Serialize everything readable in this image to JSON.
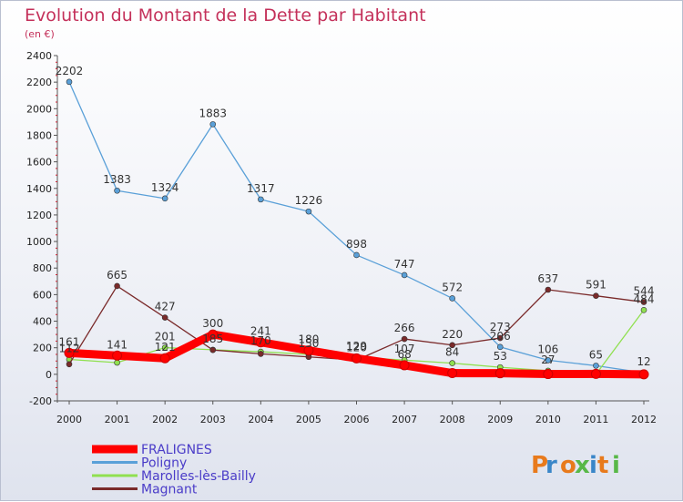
{
  "chart_data": {
    "type": "line",
    "title": "Evolution du Montant de la Dette par Habitant",
    "subtitle": "(en €)",
    "x": [
      "2000",
      "2001",
      "2002",
      "2003",
      "2004",
      "2005",
      "2006",
      "2007",
      "2008",
      "2009",
      "2010",
      "2011",
      "2012"
    ],
    "ylim": [
      -200,
      2400
    ],
    "yticks": [
      -200,
      0,
      200,
      400,
      600,
      800,
      1000,
      1200,
      1400,
      1600,
      1800,
      2000,
      2200,
      2400
    ],
    "grid": false,
    "legend_position": "bottom-left",
    "series": [
      {
        "name": "FRALIGNES",
        "color": "#ff0000",
        "values": [
          161,
          141,
          121,
          300,
          241,
          180,
          120,
          68,
          9,
          8,
          2,
          3,
          0
        ],
        "labels": [
          "161",
          "141",
          "121",
          "300",
          "241",
          "180",
          "120",
          "68",
          "",
          "",
          "",
          "",
          ""
        ]
      },
      {
        "name": "Poligny",
        "color": "#5aa0d8",
        "values": [
          2202,
          1383,
          1324,
          1883,
          1317,
          1226,
          898,
          747,
          572,
          206,
          106,
          65,
          12
        ],
        "labels": [
          "2202",
          "1383",
          "1324",
          "1883",
          "1317",
          "1226",
          "898",
          "747",
          "572",
          "206",
          "106",
          "65",
          "12"
        ]
      },
      {
        "name": "Marolles-lès-Bailly",
        "color": "#90e050",
        "values": [
          112,
          88,
          201,
          185,
          170,
          150,
          129,
          107,
          84,
          53,
          27,
          0,
          484
        ],
        "labels": [
          "112",
          "",
          "201",
          "185",
          "170",
          "150",
          "129",
          "107",
          "84",
          "53",
          "27",
          "",
          "484"
        ]
      },
      {
        "name": "Magnant",
        "color": "#7a2a2a",
        "values": [
          76,
          665,
          427,
          183,
          154,
          131,
          107,
          266,
          220,
          273,
          637,
          591,
          544
        ],
        "labels": [
          "",
          "665",
          "427",
          "",
          "",
          "",
          "",
          "266",
          "220",
          "273",
          "637",
          "591",
          "544"
        ]
      }
    ]
  },
  "logo": {
    "text": "Proxiti"
  }
}
